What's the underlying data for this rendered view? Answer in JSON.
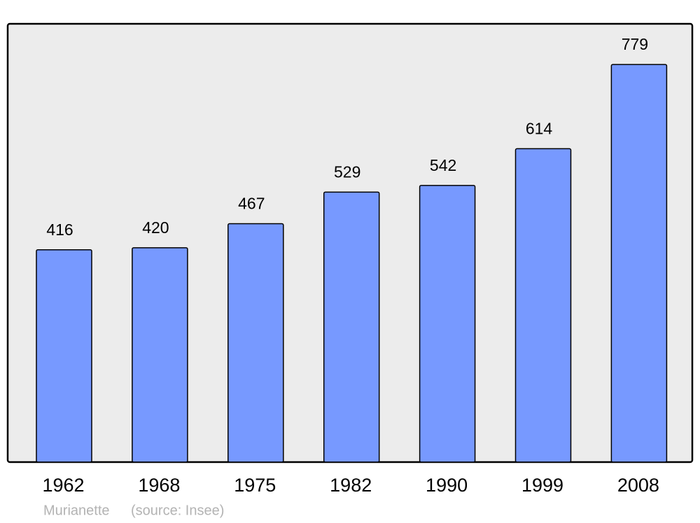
{
  "chart_data": {
    "type": "bar",
    "categories": [
      "1962",
      "1968",
      "1975",
      "1982",
      "1990",
      "1999",
      "2008"
    ],
    "values": [
      416,
      420,
      467,
      529,
      542,
      614,
      779
    ],
    "color": "#7799ff",
    "commune": "Murianette",
    "source": "(source: Insee)"
  }
}
